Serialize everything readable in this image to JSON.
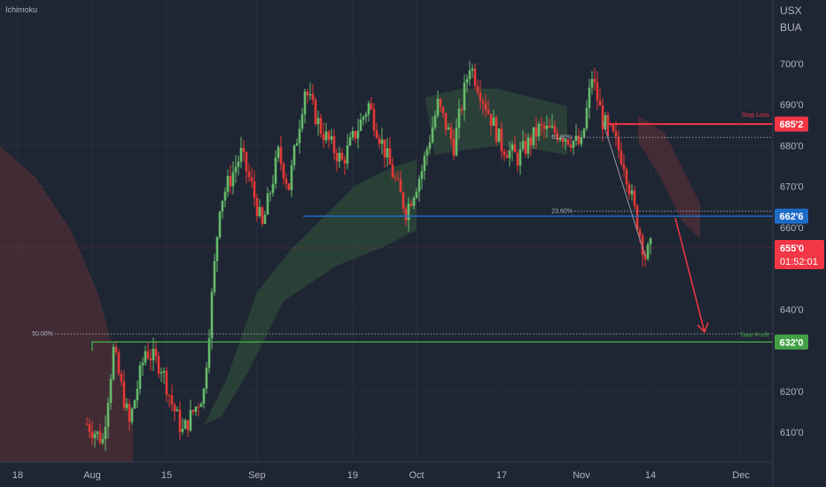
{
  "header": {
    "indicator_label": "Ichimoku"
  },
  "symbol": {
    "line1": "USX",
    "line2": "BUA"
  },
  "colors": {
    "background": "#1e2533",
    "up": "#66bb6a",
    "down": "#e53935",
    "stop_loss": "#f23645",
    "entry": "#1e6cc8",
    "take_profit": "#43a047",
    "current": "#f23645",
    "cloud_bull": "#2e4a3a",
    "cloud_bear": "#4a2e36"
  },
  "chart_data": {
    "type": "candlestick",
    "y_ticks": [
      {
        "value": 700,
        "label": "700'0"
      },
      {
        "value": 690,
        "label": "690'0"
      },
      {
        "value": 680,
        "label": "680'0"
      },
      {
        "value": 670,
        "label": "670'0"
      },
      {
        "value": 660,
        "label": "660'0"
      },
      {
        "value": 640,
        "label": "640'0"
      },
      {
        "value": 620,
        "label": "620'0"
      },
      {
        "value": 610,
        "label": "610'0"
      }
    ],
    "x_ticks": [
      "18",
      "Aug",
      "15",
      "Sep",
      "19",
      "Oct",
      "17",
      "Nov",
      "14",
      "Dec"
    ],
    "levels": {
      "stop_loss": {
        "value": 685.25,
        "tag": "685'2",
        "label": "Stop Loss"
      },
      "entry": {
        "value": 662.75,
        "tag": "662'6",
        "label": ""
      },
      "take_profit": {
        "value": 632,
        "tag": "632'0",
        "label": "Take Profit"
      },
      "current": {
        "value": 655,
        "tag": "655'0",
        "countdown": "01:52:01"
      }
    },
    "fib_levels": [
      {
        "label": "61.80%",
        "value": 682
      },
      {
        "label": "23.60%",
        "value": 664
      },
      {
        "label": "50.00%",
        "value": 634
      }
    ],
    "series": [
      {
        "t": "Jul 31",
        "close": 612
      },
      {
        "t": "Aug 3",
        "close": 608
      },
      {
        "t": "Aug 5",
        "close": 630
      },
      {
        "t": "Aug 8",
        "close": 612
      },
      {
        "t": "Aug 11",
        "close": 630
      },
      {
        "t": "Aug 14",
        "close": 626
      },
      {
        "t": "Aug 16",
        "close": 617
      },
      {
        "t": "Aug 18",
        "close": 610
      },
      {
        "t": "Aug 22",
        "close": 620
      },
      {
        "t": "Aug 25",
        "close": 666
      },
      {
        "t": "Aug 29",
        "close": 678
      },
      {
        "t": "Aug 31",
        "close": 670
      },
      {
        "t": "Sep 2",
        "close": 660
      },
      {
        "t": "Sep 5",
        "close": 678
      },
      {
        "t": "Sep 7",
        "close": 670
      },
      {
        "t": "Sep 10",
        "close": 694
      },
      {
        "t": "Sep 13",
        "close": 684
      },
      {
        "t": "Sep 17",
        "close": 676
      },
      {
        "t": "Sep 22",
        "close": 690
      },
      {
        "t": "Sep 26",
        "close": 675
      },
      {
        "t": "Sep 29",
        "close": 664
      },
      {
        "t": "Oct 2",
        "close": 674
      },
      {
        "t": "Oct 5",
        "close": 690
      },
      {
        "t": "Oct 8",
        "close": 680
      },
      {
        "t": "Oct 11",
        "close": 700
      },
      {
        "t": "Oct 14",
        "close": 690
      },
      {
        "t": "Oct 17",
        "close": 680
      },
      {
        "t": "Oct 20",
        "close": 677
      },
      {
        "t": "Oct 24",
        "close": 684
      },
      {
        "t": "Oct 28",
        "close": 683
      },
      {
        "t": "Nov 1",
        "close": 680
      },
      {
        "t": "Nov 3",
        "close": 697
      },
      {
        "t": "Nov 5",
        "close": 686
      },
      {
        "t": "Nov 7",
        "close": 682
      },
      {
        "t": "Nov 9",
        "close": 676
      },
      {
        "t": "Nov 11",
        "close": 664
      },
      {
        "t": "Nov 13",
        "close": 653
      },
      {
        "t": "Nov 14",
        "close": 655
      }
    ]
  }
}
